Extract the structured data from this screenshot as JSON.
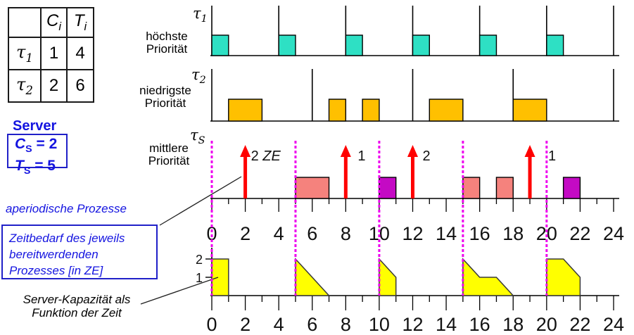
{
  "task_table": {
    "c_base": "C",
    "c_sub": "i",
    "t_base": "T",
    "t_sub": "i",
    "rows": [
      {
        "sym": "τ",
        "sub": "1",
        "c": "1",
        "t": "4"
      },
      {
        "sym": "τ",
        "sub": "2",
        "c": "2",
        "t": "6"
      }
    ]
  },
  "server": {
    "title": "Server",
    "cs": {
      "sym": "C",
      "sub": "S",
      "eq": "= 2"
    },
    "ts": {
      "sym": "T",
      "sub": "S",
      "eq": "= 5"
    }
  },
  "annotations": {
    "aperiodic": "aperiodische Prozesse",
    "demand_box": {
      "l1": "Zeitbedarf des jeweils",
      "l2": "bereitwerdenden",
      "l3": "Prozesses [in ZE]"
    },
    "capacity": {
      "l1": "Server-Kapazität als",
      "l2": "Funktion der Zeit"
    }
  },
  "priorities": {
    "tau1": {
      "sym": "τ",
      "sub": "1",
      "l1": "höchste",
      "l2": "Priorität"
    },
    "tau2": {
      "sym": "τ",
      "sub": "2",
      "l1": "niedrigste",
      "l2": "Priorität"
    },
    "server": {
      "sym": "τ",
      "sub": "S",
      "l1": "mittlere",
      "l2": "Priorität"
    }
  },
  "colors": {
    "tau1_exec": "#2ee0c4",
    "tau2_exec": "#ffc000",
    "server_salmon": "#f5827d",
    "server_purple": "#c40ac4",
    "capacity_fill": "#ffff00",
    "replenish_line": "#ee00ee",
    "arrival_arrow": "#ff0000",
    "annotation_blue": "#1414e0"
  },
  "chart_data": {
    "type": "schedule-diagram",
    "time_axis": {
      "min": 0,
      "max": 24,
      "major_step": 2,
      "minor_step": 1
    },
    "tau1": {
      "period": 4,
      "releases": [
        0,
        4,
        8,
        12,
        16,
        20,
        24
      ],
      "executions": [
        [
          0,
          1
        ],
        [
          4,
          5
        ],
        [
          8,
          9
        ],
        [
          12,
          13
        ],
        [
          16,
          17
        ],
        [
          20,
          21
        ]
      ]
    },
    "tau2": {
      "period": 6,
      "releases": [
        0,
        6,
        12,
        18,
        24
      ],
      "executions": [
        [
          1,
          3
        ],
        [
          7,
          8
        ],
        [
          9,
          10
        ],
        [
          13,
          15
        ],
        [
          18,
          20
        ]
      ]
    },
    "server_timeline": {
      "replenishments": [
        0,
        5,
        10,
        15,
        20
      ],
      "arrivals": [
        {
          "t": 2,
          "num": "2",
          "unit": "ZE",
          "dx": 8
        },
        {
          "t": 8,
          "num": "1",
          "unit": "",
          "dx": 17
        },
        {
          "t": 12,
          "num": "2",
          "unit": "",
          "dx": 14
        },
        {
          "t": 19,
          "num": "1",
          "unit": "",
          "dx": 26
        }
      ],
      "executions": [
        {
          "from": 5,
          "to": 7,
          "color": "salmon"
        },
        {
          "from": 10,
          "to": 11,
          "color": "purple"
        },
        {
          "from": 15,
          "to": 16,
          "color": "salmon"
        },
        {
          "from": 17,
          "to": 18,
          "color": "salmon"
        },
        {
          "from": 21,
          "to": 22,
          "color": "purple"
        }
      ]
    },
    "capacity_function": {
      "max": 2,
      "y_ticks": [
        "2",
        "1"
      ],
      "segments": [
        [
          [
            0,
            2
          ],
          [
            1,
            2
          ],
          [
            1,
            0
          ]
        ],
        [
          [
            5,
            2
          ],
          [
            7,
            0
          ]
        ],
        [
          [
            10,
            2
          ],
          [
            11,
            1
          ],
          [
            11,
            0
          ]
        ],
        [
          [
            15,
            2
          ],
          [
            16,
            1
          ],
          [
            17,
            1
          ],
          [
            18,
            0
          ]
        ],
        [
          [
            20,
            2
          ],
          [
            21,
            2
          ],
          [
            22,
            1
          ],
          [
            22,
            0
          ]
        ]
      ]
    }
  }
}
